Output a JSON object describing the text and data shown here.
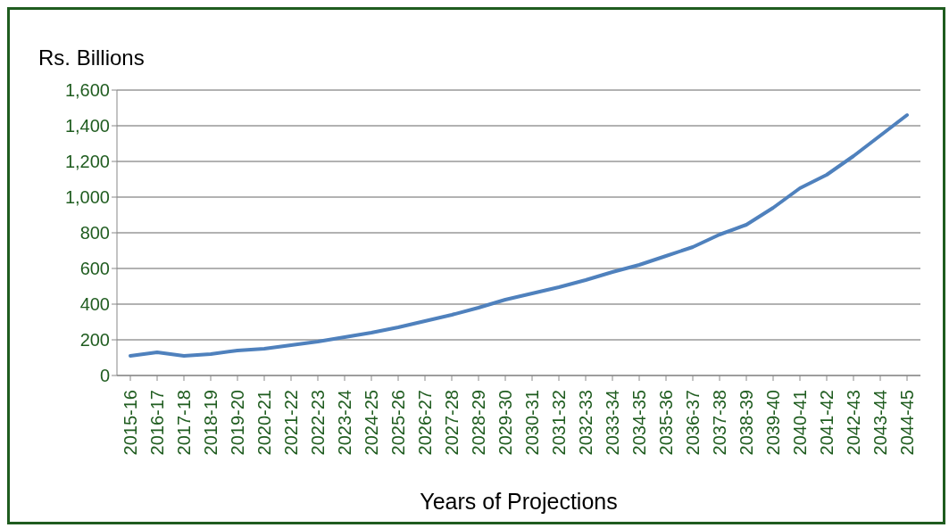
{
  "chart_data": {
    "type": "line",
    "xlabel": "Years of Projections",
    "ylabel": "Rs. Billions",
    "categories": [
      "2015-16",
      "2016-17",
      "2017-18",
      "2018-19",
      "2019-20",
      "2020-21",
      "2021-22",
      "2022-23",
      "2023-24",
      "2024-25",
      "2025-26",
      "2026-27",
      "2027-28",
      "2028-29",
      "2029-30",
      "2030-31",
      "2031-32",
      "2032-33",
      "2033-34",
      "2034-35",
      "2035-36",
      "2036-37",
      "2037-38",
      "2038-39",
      "2039-40",
      "2040-41",
      "2041-42",
      "2042-43",
      "2043-44",
      "2044-45"
    ],
    "series": [
      {
        "color": "#4f81bd",
        "values": [
          110,
          130,
          110,
          120,
          140,
          150,
          170,
          190,
          215,
          240,
          270,
          305,
          340,
          380,
          425,
          460,
          495,
          535,
          580,
          620,
          670,
          720,
          790,
          845,
          940,
          1050,
          1125,
          1230,
          1345,
          1460
        ]
      }
    ],
    "ylim": [
      0,
      1600
    ],
    "yticks": [
      {
        "value": 0,
        "label": "0"
      },
      {
        "value": 200,
        "label": "200"
      },
      {
        "value": 400,
        "label": "400"
      },
      {
        "value": 600,
        "label": "600"
      },
      {
        "value": 800,
        "label": "800"
      },
      {
        "value": 1000,
        "label": "1,000"
      },
      {
        "value": 1200,
        "label": "1,200"
      },
      {
        "value": 1400,
        "label": "1,400"
      },
      {
        "value": 1600,
        "label": "1,600"
      }
    ],
    "grid": "y",
    "marker": "none",
    "line_style": "solid",
    "legend": false
  }
}
